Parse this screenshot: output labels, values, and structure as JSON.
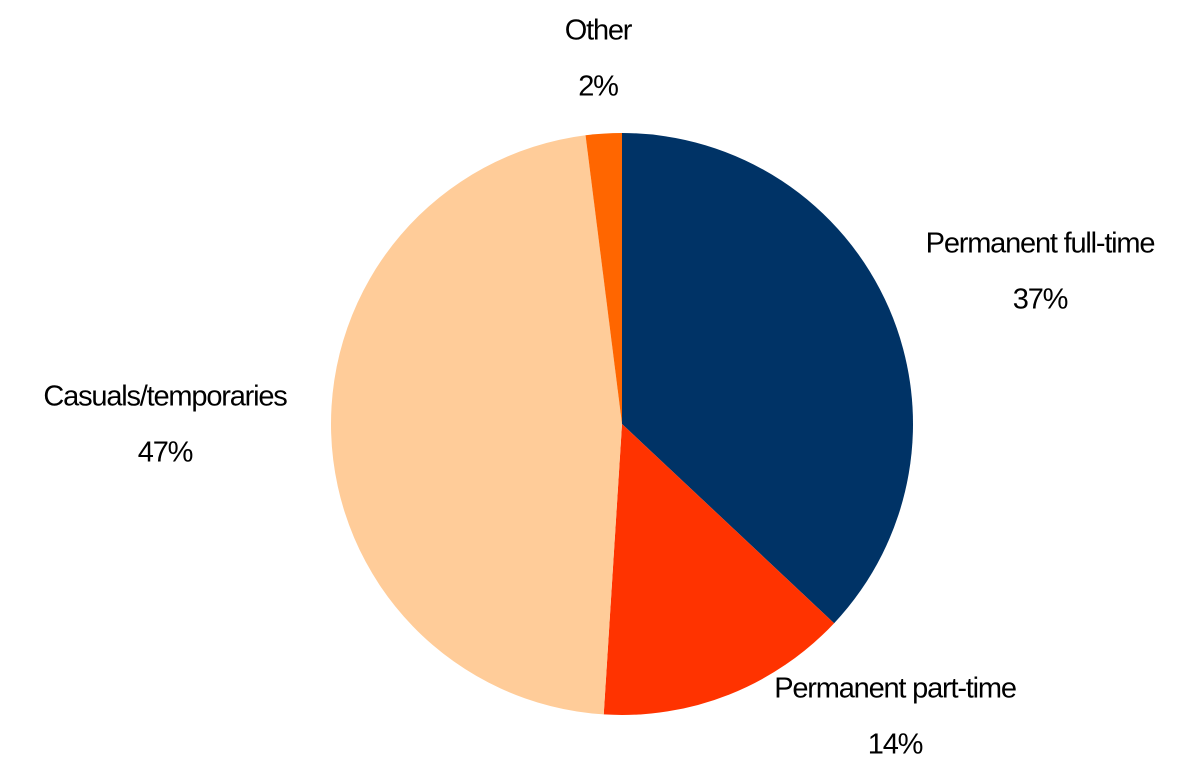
{
  "chart_data": {
    "type": "pie",
    "categories": [
      "Permanent full-time",
      "Permanent part-time",
      "Casuals/temporaries",
      "Other"
    ],
    "values": [
      37,
      14,
      47,
      2
    ],
    "value_labels": [
      "37%",
      "14%",
      "47%",
      "2%"
    ],
    "colors": [
      "#003366",
      "#ff3300",
      "#ffcc99",
      "#ff6600"
    ]
  }
}
